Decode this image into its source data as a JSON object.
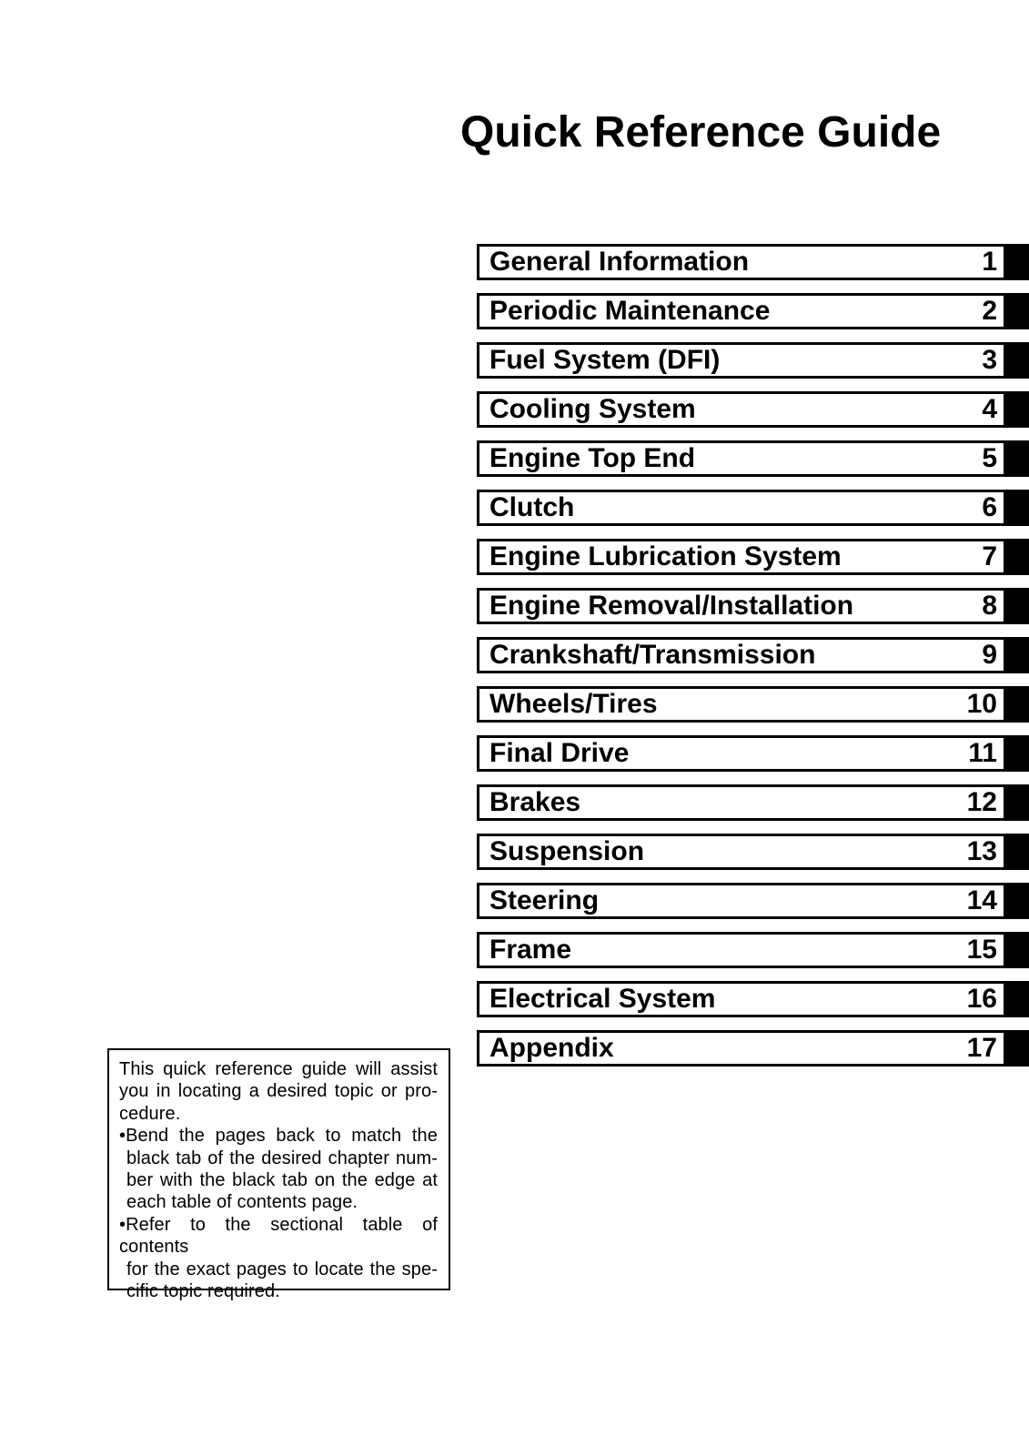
{
  "page": {
    "title": "Quick Reference Guide",
    "background_color": "#ffffff",
    "text_color": "#000000",
    "tab_color": "#000000"
  },
  "chapters": [
    {
      "label": "General Information",
      "number": "1"
    },
    {
      "label": "Periodic Maintenance",
      "number": "2"
    },
    {
      "label": "Fuel System (DFI)",
      "number": "3"
    },
    {
      "label": "Cooling System",
      "number": "4"
    },
    {
      "label": "Engine Top End",
      "number": "5"
    },
    {
      "label": "Clutch",
      "number": "6"
    },
    {
      "label": "Engine Lubrication System",
      "number": "7"
    },
    {
      "label": "Engine Removal/Installation",
      "number": "8"
    },
    {
      "label": "Crankshaft/Transmission",
      "number": "9"
    },
    {
      "label": "Wheels/Tires",
      "number": "10"
    },
    {
      "label": "Final Drive",
      "number": "11"
    },
    {
      "label": "Brakes",
      "number": "12"
    },
    {
      "label": "Suspension",
      "number": "13"
    },
    {
      "label": "Steering",
      "number": "14"
    },
    {
      "label": "Frame",
      "number": "15"
    },
    {
      "label": "Electrical System",
      "number": "16"
    },
    {
      "label": "Appendix",
      "number": "17"
    }
  ],
  "note": {
    "lines": [
      {
        "text": "This quick reference guide will assist",
        "justify": true,
        "indent": false
      },
      {
        "text": "you in locating a desired topic or pro-",
        "justify": true,
        "indent": false
      },
      {
        "text": "cedure.",
        "justify": false,
        "indent": false
      },
      {
        "text": "•Bend the pages back to match the",
        "justify": true,
        "indent": false
      },
      {
        "text": "black tab of the desired chapter num-",
        "justify": true,
        "indent": true
      },
      {
        "text": "ber with the black tab on the edge at",
        "justify": true,
        "indent": true
      },
      {
        "text": "each table of contents page.",
        "justify": false,
        "indent": true
      },
      {
        "text": "•Refer to the sectional table of contents",
        "justify": true,
        "indent": false
      },
      {
        "text": "for the exact pages to locate the spe-",
        "justify": true,
        "indent": true
      },
      {
        "text": "cific topic required.",
        "justify": false,
        "indent": true
      }
    ]
  }
}
